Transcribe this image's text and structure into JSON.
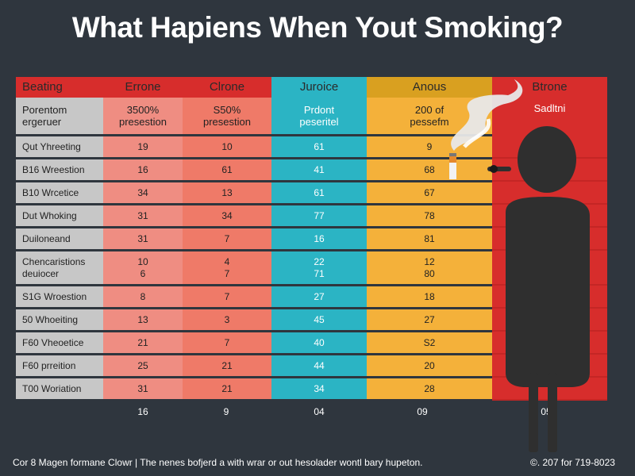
{
  "title": "What Hapiens When Yout Smoking?",
  "colors": {
    "background": "#2f363e",
    "label_col": "#c7c7c7",
    "col1": "#ef8d82",
    "col2": "#ef7a68",
    "col3": "#2bb4c4",
    "col4": "#f4b13a",
    "panel": "#d72d2c",
    "header_red": "#d72d2c",
    "header_orange": "#d9a020"
  },
  "chart_data": {
    "type": "table",
    "headers": [
      "Beating",
      "Errone",
      "Clrone",
      "Juroice",
      "Anous",
      "Btrone"
    ],
    "subheaders": [
      "Porentom\nergeruer",
      "3500%\npresestion",
      "S50%\npresestion",
      "Prdont\npeseritel",
      "200 of\npessefm",
      "Sadltni"
    ],
    "rows": [
      {
        "label": "Qut Yhreeting",
        "values": [
          "19",
          "10",
          "61",
          "9"
        ]
      },
      {
        "label": "B16 Wreestion",
        "values": [
          "16",
          "61",
          "41",
          "68"
        ]
      },
      {
        "label": "B10 Wrcetice",
        "values": [
          "34",
          "13",
          "61",
          "67"
        ]
      },
      {
        "label": "Dut Whoking",
        "values": [
          "31",
          "34",
          "77",
          "78"
        ]
      },
      {
        "label": "Duiloneand",
        "values": [
          "31",
          "7",
          "16",
          "81"
        ]
      },
      {
        "label": "Chencaristions\ndeuiocer",
        "values": [
          "10\n6",
          "4\n7",
          "22\n71",
          "12\n80"
        ]
      },
      {
        "label": "S1G Wroestion",
        "values": [
          "8",
          "7",
          "27",
          "18"
        ]
      },
      {
        "label": "50 Whoeiting",
        "values": [
          "13",
          "3",
          "45",
          "27"
        ]
      },
      {
        "label": "F60 Vheoetice",
        "values": [
          "21",
          "7",
          "40",
          "S2"
        ]
      },
      {
        "label": "F60 prreition",
        "values": [
          "25",
          "21",
          "44",
          "20"
        ]
      },
      {
        "label": "T00 Woriation",
        "values": [
          "31",
          "21",
          "34",
          "28"
        ]
      }
    ],
    "totals": [
      "16",
      "9",
      "04",
      "09",
      "05"
    ]
  },
  "footer": {
    "left": "Cor 8 Magen formane Clowr | The nenes bofjerd a with wrar or out hesolader wontl bary hupeton.",
    "right": "©. 207 for 719-8023"
  },
  "icons": [
    "cigarette-icon",
    "smoke-icon",
    "smoker-silhouette-icon"
  ]
}
